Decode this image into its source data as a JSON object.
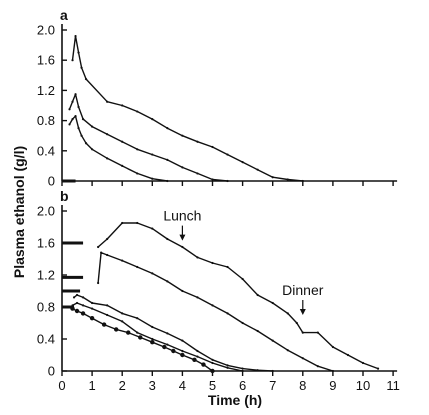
{
  "chart_data": {
    "type": "line",
    "ylabel": "Plasma ethanol (g/l)",
    "xlabel": "Time (h)",
    "xlim": [
      0,
      11
    ],
    "x_ticks": [
      "0",
      "1",
      "2",
      "3",
      "4",
      "5",
      "6",
      "7",
      "8",
      "9",
      "10",
      "11"
    ],
    "panels": [
      {
        "label": "a",
        "ylim": [
          0,
          2.0
        ],
        "y_ticks": [
          "0",
          "0.4",
          "0.8",
          "1.2",
          "1.6",
          "2.0"
        ],
        "pre_baseline": [
          {
            "x0": 0,
            "x1": 0.45,
            "y": 0
          }
        ],
        "series": [
          {
            "points": [
              [
                0.25,
                0.75
              ],
              [
                0.35,
                0.82
              ],
              [
                0.45,
                0.86
              ],
              [
                0.55,
                0.7
              ],
              [
                0.65,
                0.6
              ],
              [
                0.8,
                0.5
              ],
              [
                1.0,
                0.42
              ],
              [
                1.5,
                0.3
              ],
              [
                2.0,
                0.2
              ],
              [
                2.5,
                0.1
              ],
              [
                3.0,
                0.03
              ],
              [
                3.5,
                0.0
              ]
            ]
          },
          {
            "points": [
              [
                0.25,
                0.95
              ],
              [
                0.35,
                1.05
              ],
              [
                0.45,
                1.15
              ],
              [
                0.55,
                0.98
              ],
              [
                0.7,
                0.82
              ],
              [
                1.0,
                0.72
              ],
              [
                1.5,
                0.62
              ],
              [
                2.0,
                0.52
              ],
              [
                2.5,
                0.42
              ],
              [
                3.0,
                0.35
              ],
              [
                3.5,
                0.28
              ],
              [
                4.0,
                0.18
              ],
              [
                4.5,
                0.1
              ],
              [
                5.0,
                0.02
              ],
              [
                5.5,
                0.0
              ]
            ]
          },
          {
            "points": [
              [
                0.35,
                1.6
              ],
              [
                0.45,
                1.92
              ],
              [
                0.55,
                1.7
              ],
              [
                0.65,
                1.5
              ],
              [
                0.8,
                1.35
              ],
              [
                1.5,
                1.05
              ],
              [
                2.0,
                1.0
              ],
              [
                2.5,
                0.92
              ],
              [
                3.0,
                0.82
              ],
              [
                3.5,
                0.7
              ],
              [
                4.0,
                0.6
              ],
              [
                4.5,
                0.52
              ],
              [
                5.0,
                0.45
              ],
              [
                5.5,
                0.35
              ],
              [
                6.0,
                0.25
              ],
              [
                6.5,
                0.15
              ],
              [
                7.0,
                0.05
              ],
              [
                7.5,
                0.02
              ],
              [
                8.0,
                0.0
              ]
            ]
          }
        ]
      },
      {
        "label": "b",
        "ylim": [
          0,
          2.0
        ],
        "y_ticks": [
          "0",
          "0.4",
          "0.8",
          "1.2",
          "1.6",
          "2.0"
        ],
        "pre_baseline": [
          {
            "x0": 0,
            "x1": 0.7,
            "y": 1.6
          },
          {
            "x0": 0,
            "x1": 0.7,
            "y": 1.17
          },
          {
            "x0": 0,
            "x1": 0.6,
            "y": 1.0
          },
          {
            "x0": 0,
            "x1": 0.4,
            "y": 0.8
          }
        ],
        "series": [
          {
            "markers": true,
            "points": [
              [
                0.35,
                0.78
              ],
              [
                0.5,
                0.75
              ],
              [
                0.7,
                0.72
              ],
              [
                1.0,
                0.66
              ],
              [
                1.4,
                0.58
              ],
              [
                1.8,
                0.52
              ],
              [
                2.2,
                0.48
              ],
              [
                2.6,
                0.42
              ],
              [
                3.0,
                0.36
              ],
              [
                3.4,
                0.3
              ],
              [
                3.7,
                0.25
              ],
              [
                4.0,
                0.2
              ],
              [
                4.4,
                0.14
              ],
              [
                4.7,
                0.08
              ],
              [
                5.0,
                0.0
              ]
            ]
          },
          {
            "points": [
              [
                0.35,
                0.82
              ],
              [
                0.5,
                0.85
              ],
              [
                0.7,
                0.82
              ],
              [
                1.0,
                0.78
              ],
              [
                1.5,
                0.7
              ],
              [
                2.0,
                0.62
              ],
              [
                2.5,
                0.48
              ],
              [
                3.0,
                0.4
              ],
              [
                3.5,
                0.33
              ],
              [
                4.0,
                0.25
              ],
              [
                4.5,
                0.18
              ],
              [
                5.0,
                0.1
              ],
              [
                5.5,
                0.04
              ],
              [
                6.0,
                0.0
              ]
            ]
          },
          {
            "points": [
              [
                0.4,
                0.92
              ],
              [
                0.5,
                0.95
              ],
              [
                0.7,
                0.92
              ],
              [
                1.0,
                0.85
              ],
              [
                1.5,
                0.82
              ],
              [
                2.0,
                0.72
              ],
              [
                2.5,
                0.66
              ],
              [
                3.0,
                0.55
              ],
              [
                3.5,
                0.47
              ],
              [
                4.0,
                0.38
              ],
              [
                4.5,
                0.25
              ],
              [
                5.0,
                0.14
              ],
              [
                5.5,
                0.07
              ],
              [
                6.0,
                0.03
              ],
              [
                6.5,
                0.01
              ],
              [
                7.0,
                0.0
              ]
            ]
          },
          {
            "points": [
              [
                1.2,
                1.1
              ],
              [
                1.3,
                1.48
              ],
              [
                1.5,
                1.45
              ],
              [
                2.0,
                1.38
              ],
              [
                2.5,
                1.3
              ],
              [
                3.0,
                1.22
              ],
              [
                3.5,
                1.12
              ],
              [
                4.0,
                1.0
              ],
              [
                4.5,
                0.92
              ],
              [
                5.0,
                0.82
              ],
              [
                5.5,
                0.72
              ],
              [
                6.0,
                0.6
              ],
              [
                6.5,
                0.5
              ],
              [
                7.0,
                0.38
              ],
              [
                7.5,
                0.26
              ],
              [
                8.0,
                0.16
              ],
              [
                8.5,
                0.06
              ],
              [
                9.0,
                0.0
              ]
            ]
          },
          {
            "points": [
              [
                1.2,
                1.55
              ],
              [
                1.5,
                1.65
              ],
              [
                2.0,
                1.85
              ],
              [
                2.5,
                1.85
              ],
              [
                3.0,
                1.78
              ],
              [
                3.5,
                1.65
              ],
              [
                4.0,
                1.55
              ],
              [
                4.5,
                1.42
              ],
              [
                5.0,
                1.35
              ],
              [
                5.5,
                1.3
              ],
              [
                6.0,
                1.15
              ],
              [
                6.5,
                0.95
              ],
              [
                7.0,
                0.85
              ],
              [
                7.5,
                0.72
              ],
              [
                7.8,
                0.6
              ],
              [
                8.0,
                0.48
              ],
              [
                8.5,
                0.48
              ],
              [
                9.0,
                0.3
              ],
              [
                9.5,
                0.2
              ],
              [
                10.0,
                0.1
              ],
              [
                10.5,
                0.03
              ]
            ]
          }
        ],
        "annotations": [
          {
            "text": "Lunch",
            "x": 4.0,
            "y": 1.88
          },
          {
            "text": "Dinner",
            "x": 8.0,
            "y": 0.95
          }
        ]
      }
    ]
  }
}
